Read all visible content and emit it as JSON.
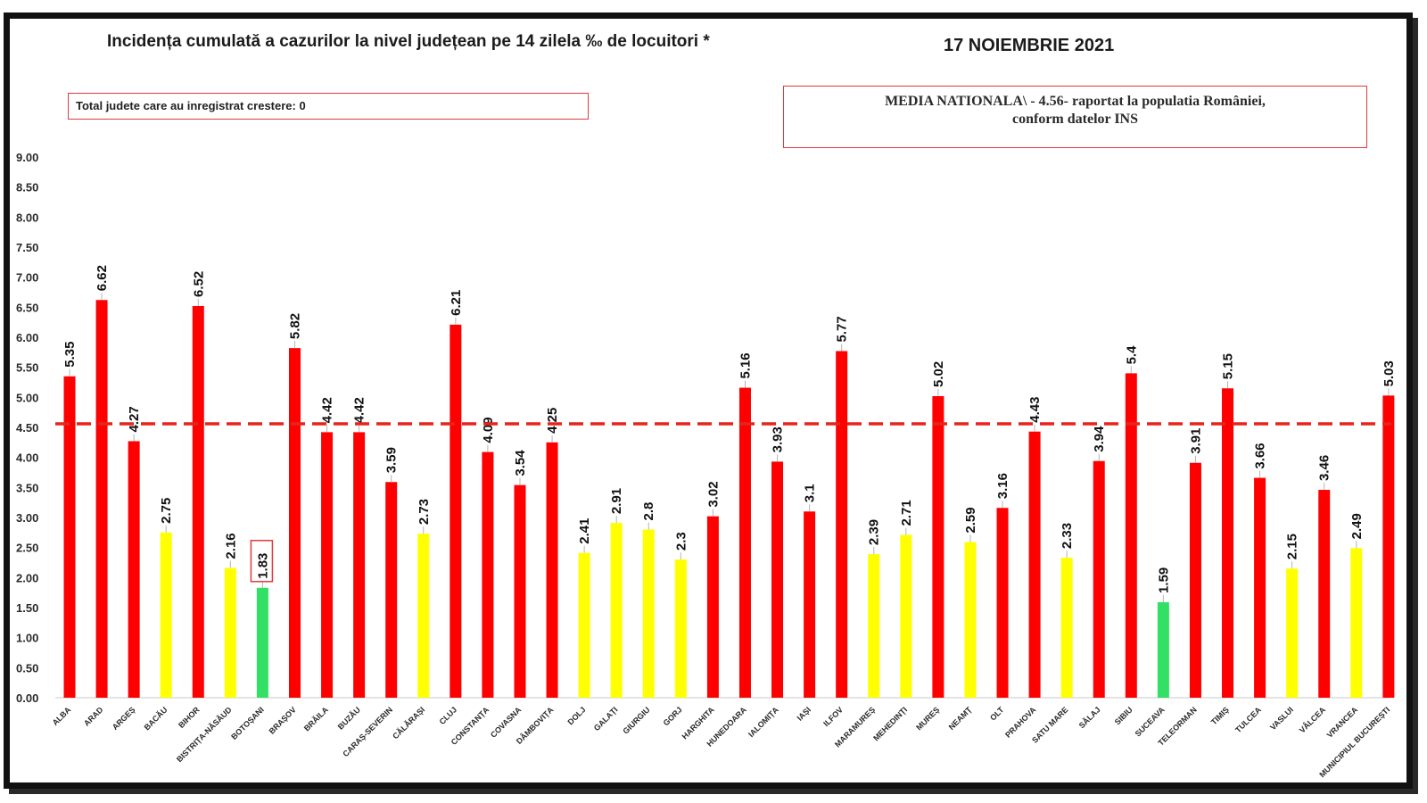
{
  "header": {
    "title": "Incidența cumulată a cazurilor la nivel județean pe 14 zilela ‰ de locuitori *",
    "date": "17 NOIEMBRIE 2021"
  },
  "notes": {
    "total_increase": "Total judete care au inregistrat crestere: 0",
    "national_line1": "MEDIA NATIONALA\\ - 4.56-  raportat la populatia României,",
    "national_line2": "conform datelor INS"
  },
  "colors": {
    "red": "#ff0000",
    "yellow": "#ffff00",
    "green": "#33e066",
    "reference_line": "#e8231c",
    "highlight_box": "#e03a3a"
  },
  "chart_data": {
    "type": "bar",
    "title": "Incidența cumulată a cazurilor la nivel județean pe 14 zilela ‰ de locuitori *",
    "xlabel": "",
    "ylabel": "",
    "ylim": [
      0,
      9
    ],
    "ytick_labels": [
      "0.00",
      "0.50",
      "1.00",
      "1.50",
      "2.00",
      "2.50",
      "3.00",
      "3.50",
      "4.00",
      "4.50",
      "5.00",
      "5.50",
      "6.00",
      "6.50",
      "7.00",
      "7.50",
      "8.00",
      "8.50",
      "9.00"
    ],
    "reference_line": {
      "value": 4.56,
      "style": "dashed"
    },
    "highlighted": "BOTOȘANI",
    "categories": [
      "ALBA",
      "ARAD",
      "ARGEȘ",
      "BACĂU",
      "BIHOR",
      "BISTRIȚA-NĂSĂUD",
      "BOTOȘANI",
      "BRAȘOV",
      "BRĂILA",
      "BUZĂU",
      "CARAȘ-SEVERIN",
      "CĂLĂRAȘI",
      "CLUJ",
      "CONSTANȚA",
      "COVASNA",
      "DÂMBOVIȚA",
      "DOLJ",
      "GALAȚI",
      "GIURGIU",
      "GORJ",
      "HARGHITA",
      "HUNEDOARA",
      "IALOMIȚA",
      "IAȘI",
      "ILFOV",
      "MARAMUREȘ",
      "MEHEDINȚI",
      "MUREȘ",
      "NEAMȚ",
      "OLT",
      "PRAHOVA",
      "SATU MARE",
      "SĂLAJ",
      "SIBIU",
      "SUCEAVA",
      "TELEORMAN",
      "TIMIȘ",
      "TULCEA",
      "VASLUI",
      "VÂLCEA",
      "VRANCEA",
      "MUNICIPIUL BUCUREȘTI"
    ],
    "values": [
      5.35,
      6.62,
      4.27,
      2.75,
      6.52,
      2.16,
      1.83,
      5.82,
      4.42,
      4.42,
      3.59,
      2.73,
      6.21,
      4.09,
      3.54,
      4.25,
      2.41,
      2.91,
      2.8,
      2.3,
      3.02,
      5.16,
      3.93,
      3.1,
      5.77,
      2.39,
      2.71,
      5.02,
      2.59,
      3.16,
      4.43,
      2.33,
      3.94,
      5.4,
      1.59,
      3.91,
      5.15,
      3.66,
      2.15,
      3.46,
      2.49,
      5.03
    ],
    "value_labels": [
      "5.35",
      "6.62",
      "4.27",
      "2.75",
      "6.52",
      "2.16",
      "1.83",
      "5.82",
      "4.42",
      "4.42",
      "3.59",
      "2.73",
      "6.21",
      "4.09",
      "3.54",
      "4.25",
      "2.41",
      "2.91",
      "2.8",
      "2.3",
      "3.02",
      "5.16",
      "3.93",
      "3.1",
      "5.77",
      "2.39",
      "2.71",
      "5.02",
      "2.59",
      "3.16",
      "4.43",
      "2.33",
      "3.94",
      "5.4",
      "1.59",
      "3.91",
      "5.15",
      "3.66",
      "2.15",
      "3.46",
      "2.49",
      "5.03"
    ],
    "bar_colors": [
      "red",
      "red",
      "red",
      "yellow",
      "red",
      "yellow",
      "green",
      "red",
      "red",
      "red",
      "red",
      "yellow",
      "red",
      "red",
      "red",
      "red",
      "yellow",
      "yellow",
      "yellow",
      "yellow",
      "red",
      "red",
      "red",
      "red",
      "red",
      "yellow",
      "yellow",
      "red",
      "yellow",
      "red",
      "red",
      "yellow",
      "red",
      "red",
      "green",
      "red",
      "red",
      "red",
      "yellow",
      "red",
      "yellow",
      "red"
    ]
  }
}
